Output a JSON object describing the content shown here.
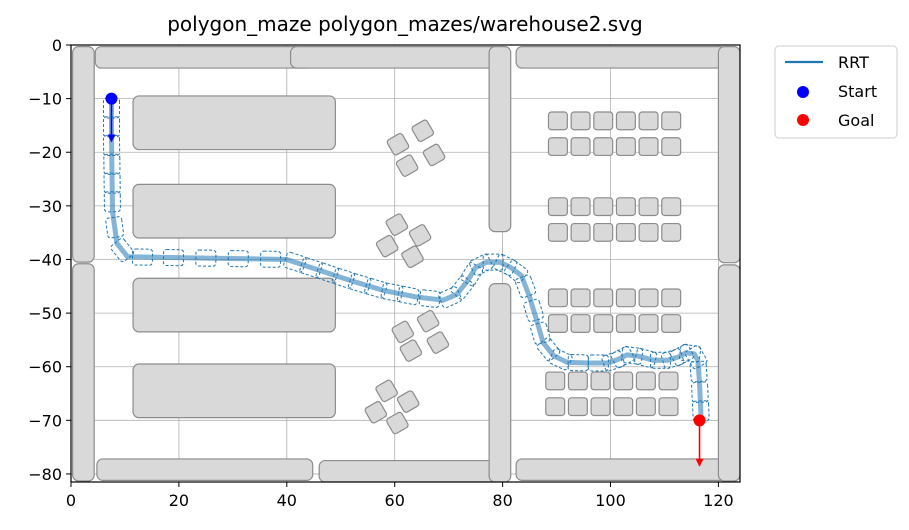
{
  "chart_data": {
    "type": "line",
    "title": "polygon_maze polygon_mazes/warehouse2.svg",
    "xlabel": "",
    "ylabel": "",
    "xlim": [
      0,
      124
    ],
    "ylim": [
      -81.5,
      0
    ],
    "x_ticks": [
      0,
      20,
      40,
      60,
      80,
      100,
      120
    ],
    "x_tick_labels": [
      "0",
      "20",
      "40",
      "60",
      "80",
      "100",
      "120"
    ],
    "y_ticks": [
      0,
      -10,
      -20,
      -30,
      -40,
      -50,
      -60,
      -70,
      -80
    ],
    "y_tick_labels": [
      "0",
      "−10",
      "−20",
      "−30",
      "−40",
      "−50",
      "−60",
      "−70",
      "−80"
    ],
    "grid": true,
    "legend": {
      "placement": "outside-top-right",
      "entries": [
        {
          "label": "RRT",
          "marker": "line",
          "color": "#1f77b4"
        },
        {
          "label": "Start",
          "marker": "dot",
          "color": "#0000ff"
        },
        {
          "label": "Goal",
          "marker": "dot",
          "color": "#ff0000"
        }
      ]
    },
    "colors": {
      "path": "#1f77b4",
      "start": "#0000ff",
      "goal": "#ff0000",
      "obstacle_fill": "#d9d9d9",
      "obstacle_edge": "#8c8c8c",
      "grid": "#b0b0b0"
    },
    "start": {
      "x": 7.5,
      "y": -10,
      "heading_to": [
        7.5,
        -18
      ]
    },
    "goal": {
      "x": 116.5,
      "y": -70,
      "heading_to": [
        116.5,
        -78.5
      ]
    },
    "series": [
      {
        "name": "RRT",
        "x": [
          7.5,
          7.5,
          7.6,
          7.7,
          8.5,
          10.5,
          16,
          22,
          28,
          34,
          40,
          46,
          52,
          58,
          64,
          69,
          71.5,
          73.5,
          75,
          77,
          79.5,
          81.5,
          83.5,
          85,
          86.5,
          87.5,
          89.5,
          92,
          96,
          99.5,
          101.5,
          103,
          105,
          108,
          110.5,
          112.5,
          114,
          115.5,
          116.2,
          116.5,
          116.8
        ],
        "y": [
          -10,
          -17,
          -24,
          -31,
          -37,
          -39.5,
          -39.6,
          -39.7,
          -39.8,
          -39.9,
          -40,
          -42,
          -44,
          -45.8,
          -47,
          -47.6,
          -46.5,
          -44,
          -41.5,
          -40.5,
          -40.5,
          -41.5,
          -43,
          -47,
          -52,
          -55.5,
          -58,
          -59.2,
          -59.3,
          -59.3,
          -58.6,
          -57.8,
          -58,
          -58.8,
          -58.8,
          -58.2,
          -57.4,
          -57.6,
          -58.8,
          -63,
          -70
        ]
      }
    ],
    "obstacles": [
      {
        "shape": "rect",
        "x": 0.3,
        "y": -0.3,
        "w": 4,
        "h": 40.2
      },
      {
        "shape": "rect",
        "x": 0.3,
        "y": -40.8,
        "w": 4,
        "h": 40.5
      },
      {
        "shape": "rect",
        "x": 4.5,
        "y": -0.3,
        "w": 40,
        "h": 4
      },
      {
        "shape": "rect",
        "x": 40.7,
        "y": -0.3,
        "w": 39,
        "h": 4
      },
      {
        "shape": "rect",
        "x": 82.5,
        "y": -0.3,
        "w": 39,
        "h": 4
      },
      {
        "shape": "rect",
        "x": 4.8,
        "y": -77.2,
        "w": 40,
        "h": 4
      },
      {
        "shape": "rect",
        "x": 46,
        "y": -77.5,
        "w": 35,
        "h": 4
      },
      {
        "shape": "rect",
        "x": 82.5,
        "y": -77.2,
        "w": 39,
        "h": 4
      },
      {
        "shape": "rect",
        "x": 77.5,
        "y": -0.3,
        "w": 4,
        "h": 34.5
      },
      {
        "shape": "rect",
        "x": 77.5,
        "y": -44.5,
        "w": 4,
        "h": 37
      },
      {
        "shape": "rect",
        "x": 120,
        "y": -0.3,
        "w": 4,
        "h": 40.3
      },
      {
        "shape": "rect",
        "x": 120,
        "y": -41,
        "w": 4,
        "h": 40.3
      },
      {
        "shape": "rect",
        "x": 11.5,
        "y": -9.5,
        "w": 37.5,
        "h": 10
      },
      {
        "shape": "rect",
        "x": 11.5,
        "y": -26,
        "w": 37.5,
        "h": 10
      },
      {
        "shape": "rect",
        "x": 11.5,
        "y": -43.5,
        "w": 37.5,
        "h": 10
      },
      {
        "shape": "rect",
        "x": 11.5,
        "y": -59.5,
        "w": 37.5,
        "h": 10
      },
      {
        "shape": "tile",
        "cx": 60.6,
        "cy": -18.5,
        "s": 3.2,
        "rot": 30
      },
      {
        "shape": "tile",
        "cx": 65.2,
        "cy": -16,
        "s": 3.2,
        "rot": 30
      },
      {
        "shape": "tile",
        "cx": 62.3,
        "cy": -22.5,
        "s": 3.2,
        "rot": 30
      },
      {
        "shape": "tile",
        "cx": 67.3,
        "cy": -20.5,
        "s": 3.2,
        "rot": 30
      },
      {
        "shape": "tile",
        "cx": 60.4,
        "cy": -33.5,
        "s": 3.2,
        "rot": 30
      },
      {
        "shape": "tile",
        "cx": 58.6,
        "cy": -37.5,
        "s": 3.2,
        "rot": 30
      },
      {
        "shape": "tile",
        "cx": 64.7,
        "cy": -35.5,
        "s": 3.2,
        "rot": 30
      },
      {
        "shape": "tile",
        "cx": 63.3,
        "cy": -39.5,
        "s": 3.2,
        "rot": 30
      },
      {
        "shape": "tile",
        "cx": 61.5,
        "cy": -53.5,
        "s": 3.2,
        "rot": 30
      },
      {
        "shape": "tile",
        "cx": 66.2,
        "cy": -51.5,
        "s": 3.2,
        "rot": 30
      },
      {
        "shape": "tile",
        "cx": 63,
        "cy": -57,
        "s": 3.2,
        "rot": 30
      },
      {
        "shape": "tile",
        "cx": 68,
        "cy": -55.5,
        "s": 3.2,
        "rot": 30
      },
      {
        "shape": "tile",
        "cx": 58.5,
        "cy": -64.5,
        "s": 3.2,
        "rot": 30
      },
      {
        "shape": "tile",
        "cx": 56.5,
        "cy": -68.5,
        "s": 3.2,
        "rot": 30
      },
      {
        "shape": "tile",
        "cx": 62.5,
        "cy": -66.5,
        "s": 3.2,
        "rot": 30
      },
      {
        "shape": "tile",
        "cx": 60.5,
        "cy": -70.5,
        "s": 3.2,
        "rot": 30
      },
      {
        "shape": "grid",
        "x0": 88.5,
        "y0": -12.5,
        "cols": 6,
        "rows": 2,
        "w": 3.5,
        "h": 3.3,
        "dx": 4.2,
        "dy": -4.8
      },
      {
        "shape": "grid",
        "x0": 88.5,
        "y0": -28.5,
        "cols": 6,
        "rows": 2,
        "w": 3.5,
        "h": 3.3,
        "dx": 4.2,
        "dy": -4.8
      },
      {
        "shape": "grid",
        "x0": 88.5,
        "y0": -45.5,
        "cols": 6,
        "rows": 2,
        "w": 3.5,
        "h": 3.3,
        "dx": 4.2,
        "dy": -4.8
      },
      {
        "shape": "grid",
        "x0": 88.0,
        "y0": -61.0,
        "cols": 6,
        "rows": 2,
        "w": 3.5,
        "h": 3.3,
        "dx": 4.2,
        "dy": -4.8
      }
    ]
  }
}
